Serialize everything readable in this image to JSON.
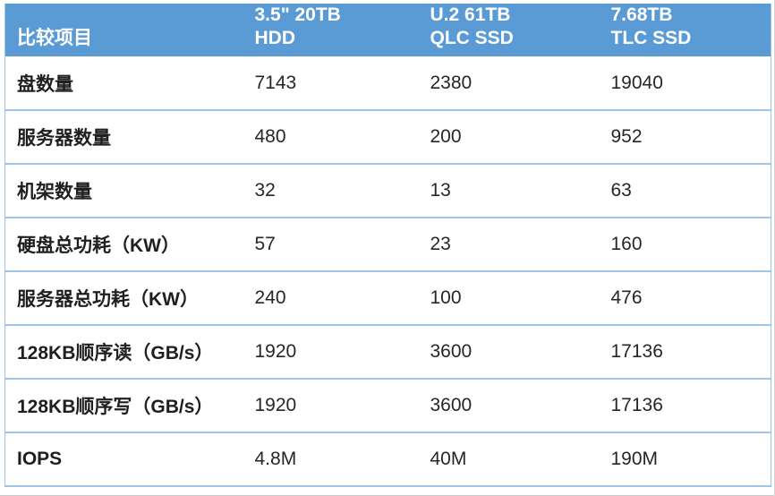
{
  "chart_data": {
    "type": "table",
    "title": "",
    "header": {
      "first_col": "比较项目",
      "product_columns": [
        {
          "line1": "3.5\" 20TB",
          "line2": "HDD"
        },
        {
          "line1": "U.2 61TB",
          "line2": "QLC SSD"
        },
        {
          "line1": "7.68TB",
          "line2": "TLC SSD"
        }
      ]
    },
    "rows": [
      {
        "label": "盘数量",
        "values": [
          "7143",
          "2380",
          "19040"
        ]
      },
      {
        "label": "服务器数量",
        "values": [
          "480",
          "200",
          "952"
        ]
      },
      {
        "label": "机架数量",
        "values": [
          "32",
          "13",
          "63"
        ]
      },
      {
        "label": "硬盘总功耗（KW）",
        "values": [
          "57",
          "23",
          "160"
        ]
      },
      {
        "label": "服务器总功耗（KW）",
        "values": [
          "240",
          "100",
          "476"
        ]
      },
      {
        "label": "128KB顺序读（GB/s）",
        "values": [
          "1920",
          "3600",
          "17136"
        ]
      },
      {
        "label": "128KB顺序写（GB/s）",
        "values": [
          "1920",
          "3600",
          "17136"
        ]
      },
      {
        "label": "IOPS",
        "values": [
          "4.8M",
          "40M",
          "190M"
        ]
      }
    ],
    "colors": {
      "header_bg": "#5B9BD5",
      "header_text": "#FFFFFF",
      "row_border": "#9DC3E6",
      "body_text": "#1F1F1F"
    }
  }
}
